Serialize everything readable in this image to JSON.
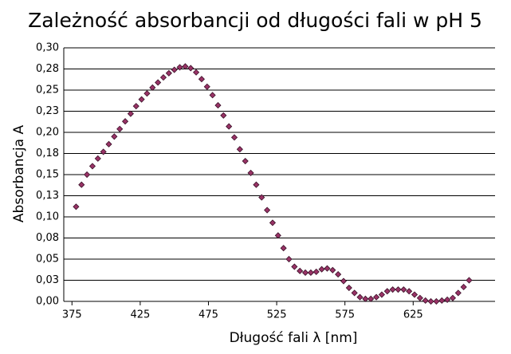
{
  "chart_data": {
    "type": "scatter",
    "title": "Zależność absorbancji od długości fali w pH 5",
    "x_label": "Długość fali λ [nm]",
    "y_label": "Absorbancja A",
    "xlim": [
      369,
      685
    ],
    "xticks": [
      375,
      425,
      475,
      525,
      575,
      625
    ],
    "ylim": [
      0,
      0.3
    ],
    "yticks": [
      {
        "value": 0,
        "label": "0,00"
      },
      {
        "value": 0.025,
        "label": "0,03"
      },
      {
        "value": 0.05,
        "label": "0,05"
      },
      {
        "value": 0.075,
        "label": "0,08"
      },
      {
        "value": 0.1,
        "label": "0,10"
      },
      {
        "value": 0.125,
        "label": "0,13"
      },
      {
        "value": 0.15,
        "label": "0,15"
      },
      {
        "value": 0.175,
        "label": "0,18"
      },
      {
        "value": 0.2,
        "label": "0,20"
      },
      {
        "value": 0.225,
        "label": "0,23"
      },
      {
        "value": 0.25,
        "label": "0,25"
      },
      {
        "value": 0.275,
        "label": "0,28"
      },
      {
        "value": 0.3,
        "label": "0,30"
      }
    ],
    "grid": true,
    "color": "#993366",
    "x": [
      378,
      382,
      386,
      390,
      394,
      398,
      402,
      406,
      410,
      414,
      418,
      422,
      426,
      430,
      434,
      438,
      442,
      446,
      450,
      454,
      458,
      462,
      466,
      470,
      474,
      478,
      482,
      486,
      490,
      494,
      498,
      502,
      506,
      510,
      514,
      518,
      522,
      526,
      530,
      534,
      538,
      542,
      546,
      550,
      554,
      558,
      562,
      566,
      570,
      574,
      578,
      582,
      586,
      590,
      594,
      598,
      602,
      606,
      610,
      614,
      618,
      622,
      626,
      630,
      634,
      638,
      642,
      646,
      650,
      654,
      658,
      662,
      666
    ],
    "values": [
      0.112,
      0.138,
      0.15,
      0.16,
      0.169,
      0.177,
      0.186,
      0.195,
      0.204,
      0.213,
      0.222,
      0.231,
      0.239,
      0.246,
      0.253,
      0.259,
      0.265,
      0.27,
      0.274,
      0.277,
      0.278,
      0.276,
      0.271,
      0.263,
      0.254,
      0.244,
      0.232,
      0.22,
      0.207,
      0.194,
      0.18,
      0.166,
      0.152,
      0.138,
      0.123,
      0.108,
      0.093,
      0.078,
      0.063,
      0.05,
      0.041,
      0.036,
      0.034,
      0.034,
      0.035,
      0.038,
      0.039,
      0.037,
      0.032,
      0.024,
      0.016,
      0.01,
      0.005,
      0.003,
      0.003,
      0.005,
      0.008,
      0.012,
      0.014,
      0.014,
      0.014,
      0.012,
      0.008,
      0.004,
      0.001,
      0.0,
      0.0,
      0.001,
      0.002,
      0.004,
      0.01,
      0.017,
      0.025
    ]
  }
}
